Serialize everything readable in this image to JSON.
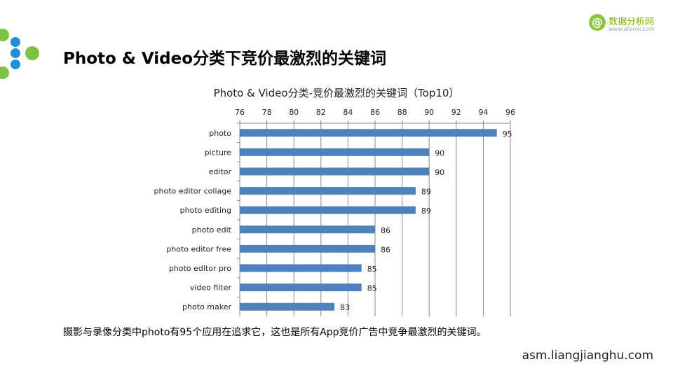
{
  "brand": {
    "at": "@",
    "name": "数据分析网",
    "url": "www.afenxi.com"
  },
  "page_title": "Photo & Video分类下竞价最激烈的关键词",
  "caption": "摄影与录像分类中photo有95个应用在追求它，这也是所有App竞价广告中竞争最激烈的关键词。",
  "site": "asm.liangjianghu.com",
  "colors": {
    "bar": "#4f81bd",
    "grid": "#888888",
    "logo_green": "#7dc243",
    "logo_blue": "#1f8fd6"
  },
  "chart_data": {
    "type": "bar",
    "orientation": "horizontal",
    "title": "Photo & Video分类-竞价最激烈的关键词（Top10）",
    "categories": [
      "photo",
      "picture",
      "editor",
      "photo editor collage",
      "photo editing",
      "photo edit",
      "photo editor free",
      "photo editor pro",
      "video filter",
      "photo maker"
    ],
    "values": [
      95,
      90,
      90,
      89,
      89,
      86,
      86,
      85,
      85,
      83
    ],
    "xlim": [
      76,
      96
    ],
    "ticks": [
      "76",
      "78",
      "80",
      "82",
      "84",
      "86",
      "88",
      "90",
      "92",
      "94",
      "96"
    ],
    "axis_position": "top",
    "grid": true,
    "legend": "none"
  }
}
